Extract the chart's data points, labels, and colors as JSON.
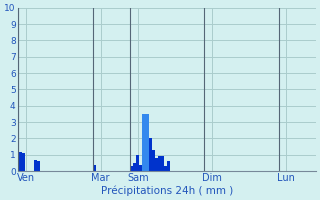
{
  "title": "Précipitations 24h ( mm )",
  "background_color": "#d4f0f0",
  "bar_color_dark": "#0033cc",
  "bar_color_light": "#3388ee",
  "ylim": [
    0,
    10
  ],
  "yticks": [
    0,
    1,
    2,
    3,
    4,
    5,
    6,
    7,
    8,
    9,
    10
  ],
  "grid_color": "#aacccc",
  "axis_label_color": "#2255bb",
  "day_labels": [
    "Ven",
    "Mar",
    "Sam",
    "Dim",
    "Lun"
  ],
  "day_tick_positions": [
    2,
    26,
    38,
    62,
    86
  ],
  "day_line_positions": [
    0,
    24,
    36,
    60,
    84
  ],
  "n_bars": 96,
  "bar_values": [
    1.2,
    1.1,
    0,
    0,
    0,
    0.7,
    0.6,
    0,
    0,
    0,
    0,
    0,
    0,
    0,
    0,
    0,
    0,
    0,
    0,
    0,
    0,
    0,
    0,
    0,
    0.4,
    0,
    0,
    0,
    0,
    0,
    0,
    0,
    0,
    0,
    0,
    0,
    0.3,
    0.5,
    1.0,
    0.4,
    3.5,
    3.5,
    2.0,
    1.3,
    0.8,
    0.9,
    0.9,
    0.3,
    0.6,
    0,
    0,
    0,
    0,
    0,
    0,
    0,
    0,
    0,
    0,
    0,
    0,
    0,
    0,
    0,
    0,
    0,
    0,
    0,
    0,
    0,
    0,
    0,
    0,
    0,
    0,
    0,
    0,
    0,
    0,
    0,
    0,
    0,
    0,
    0,
    0,
    0,
    0,
    0,
    0,
    0,
    0,
    0,
    0,
    0,
    0,
    0
  ],
  "bar_colors_override": {
    "40": "light",
    "41": "light"
  }
}
